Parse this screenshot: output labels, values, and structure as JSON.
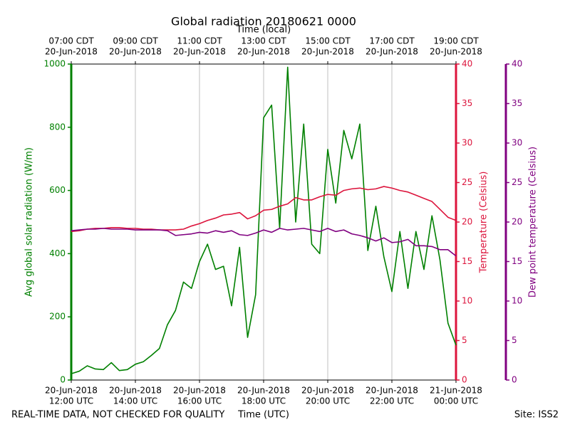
{
  "chart_data": {
    "type": "line",
    "title": "Global radiation 20180621 0000",
    "x_label": "Time (UTC)",
    "x2_label": "Time (local)",
    "y_label": "Avg global solar radiation (W/m)",
    "y2_label": "Temperature (Celsius)",
    "y3_label": "Dew point temperature (Celsius)",
    "footer_left": "REAL-TIME DATA, NOT CHECKED FOR QUALITY",
    "footer_right": "Site: ISS2",
    "grid": true,
    "xlim": [
      12,
      24
    ],
    "xticks": [
      {
        "value": 12,
        "label": [
          "20-Jun-2018",
          "12:00 UTC"
        ]
      },
      {
        "value": 14,
        "label": [
          "20-Jun-2018",
          "14:00 UTC"
        ]
      },
      {
        "value": 16,
        "label": [
          "20-Jun-2018",
          "16:00 UTC"
        ]
      },
      {
        "value": 18,
        "label": [
          "20-Jun-2018",
          "18:00 UTC"
        ]
      },
      {
        "value": 20,
        "label": [
          "20-Jun-2018",
          "20:00 UTC"
        ]
      },
      {
        "value": 22,
        "label": [
          "20-Jun-2018",
          "22:00 UTC"
        ]
      },
      {
        "value": 24,
        "label": [
          "21-Jun-2018",
          "00:00 UTC"
        ]
      }
    ],
    "x2ticks": [
      {
        "value": 12,
        "label": [
          "07:00 CDT",
          "20-Jun-2018"
        ]
      },
      {
        "value": 14,
        "label": [
          "09:00 CDT",
          "20-Jun-2018"
        ]
      },
      {
        "value": 16,
        "label": [
          "11:00 CDT",
          "20-Jun-2018"
        ]
      },
      {
        "value": 18,
        "label": [
          "13:00 CDT",
          "20-Jun-2018"
        ]
      },
      {
        "value": 20,
        "label": [
          "15:00 CDT",
          "20-Jun-2018"
        ]
      },
      {
        "value": 22,
        "label": [
          "17:00 CDT",
          "20-Jun-2018"
        ]
      },
      {
        "value": 24,
        "label": [
          "19:00 CDT",
          "20-Jun-2018"
        ]
      }
    ],
    "ylim": [
      0,
      1000
    ],
    "yticks": [
      0,
      200,
      400,
      600,
      800,
      1000
    ],
    "y_color": "#008000",
    "y2lim": [
      0,
      40
    ],
    "y2ticks": [
      0,
      5,
      10,
      15,
      20,
      25,
      30,
      35,
      40
    ],
    "y2_color": "#dc143c",
    "y3lim": [
      0,
      40
    ],
    "y3ticks": [
      0,
      5,
      10,
      15,
      20,
      25,
      30,
      35,
      40
    ],
    "y3_color": "#800080",
    "x": [
      12,
      12.25,
      12.5,
      12.75,
      13,
      13.25,
      13.5,
      13.75,
      14,
      14.25,
      14.5,
      14.75,
      15,
      15.25,
      15.5,
      15.75,
      16,
      16.25,
      16.5,
      16.75,
      17,
      17.25,
      17.5,
      17.75,
      18,
      18.25,
      18.5,
      18.75,
      19,
      19.25,
      19.5,
      19.75,
      20,
      20.25,
      20.5,
      20.75,
      21,
      21.25,
      21.5,
      21.75,
      22,
      22.25,
      22.5,
      22.75,
      23,
      23.25,
      23.5,
      23.75,
      24
    ],
    "series": [
      {
        "name": "Avg global solar radiation",
        "color": "#008000",
        "axis": "y",
        "values": [
          20,
          28,
          45,
          35,
          33,
          55,
          30,
          33,
          50,
          58,
          78,
          100,
          175,
          220,
          310,
          290,
          375,
          430,
          350,
          360,
          235,
          420,
          135,
          270,
          830,
          870,
          480,
          990,
          500,
          810,
          430,
          400,
          730,
          560,
          790,
          700,
          810,
          410,
          550,
          390,
          280,
          470,
          290,
          470,
          350,
          520,
          380,
          180,
          110
        ]
      },
      {
        "name": "Temperature",
        "color": "#dc143c",
        "axis": "y2",
        "values": [
          18.8,
          18.9,
          19.1,
          19.2,
          19.2,
          19.3,
          19.3,
          19.2,
          19.2,
          19.1,
          19.1,
          19.0,
          19.0,
          19.0,
          19.1,
          19.5,
          19.8,
          20.2,
          20.5,
          20.9,
          21.0,
          21.2,
          20.4,
          20.8,
          21.5,
          21.6,
          22.0,
          22.3,
          23.1,
          22.8,
          22.8,
          23.2,
          23.5,
          23.4,
          24.0,
          24.2,
          24.3,
          24.1,
          24.2,
          24.5,
          24.3,
          24.0,
          23.8,
          23.4,
          23.0,
          22.6,
          21.6,
          20.6,
          20.2
        ]
      },
      {
        "name": "Dew point temperature",
        "color": "#800080",
        "axis": "y3",
        "values": [
          18.9,
          19.0,
          19.1,
          19.1,
          19.2,
          19.1,
          19.1,
          19.1,
          19.0,
          19.0,
          19.0,
          19.0,
          18.9,
          18.3,
          18.4,
          18.5,
          18.7,
          18.6,
          18.9,
          18.7,
          18.9,
          18.4,
          18.3,
          18.6,
          19.0,
          18.7,
          19.2,
          19.0,
          19.1,
          19.2,
          19.0,
          18.8,
          19.2,
          18.8,
          19.0,
          18.5,
          18.3,
          18.0,
          17.6,
          18.0,
          17.4,
          17.5,
          17.8,
          17.0,
          17.0,
          16.9,
          16.5,
          16.5,
          15.7
        ]
      }
    ]
  }
}
